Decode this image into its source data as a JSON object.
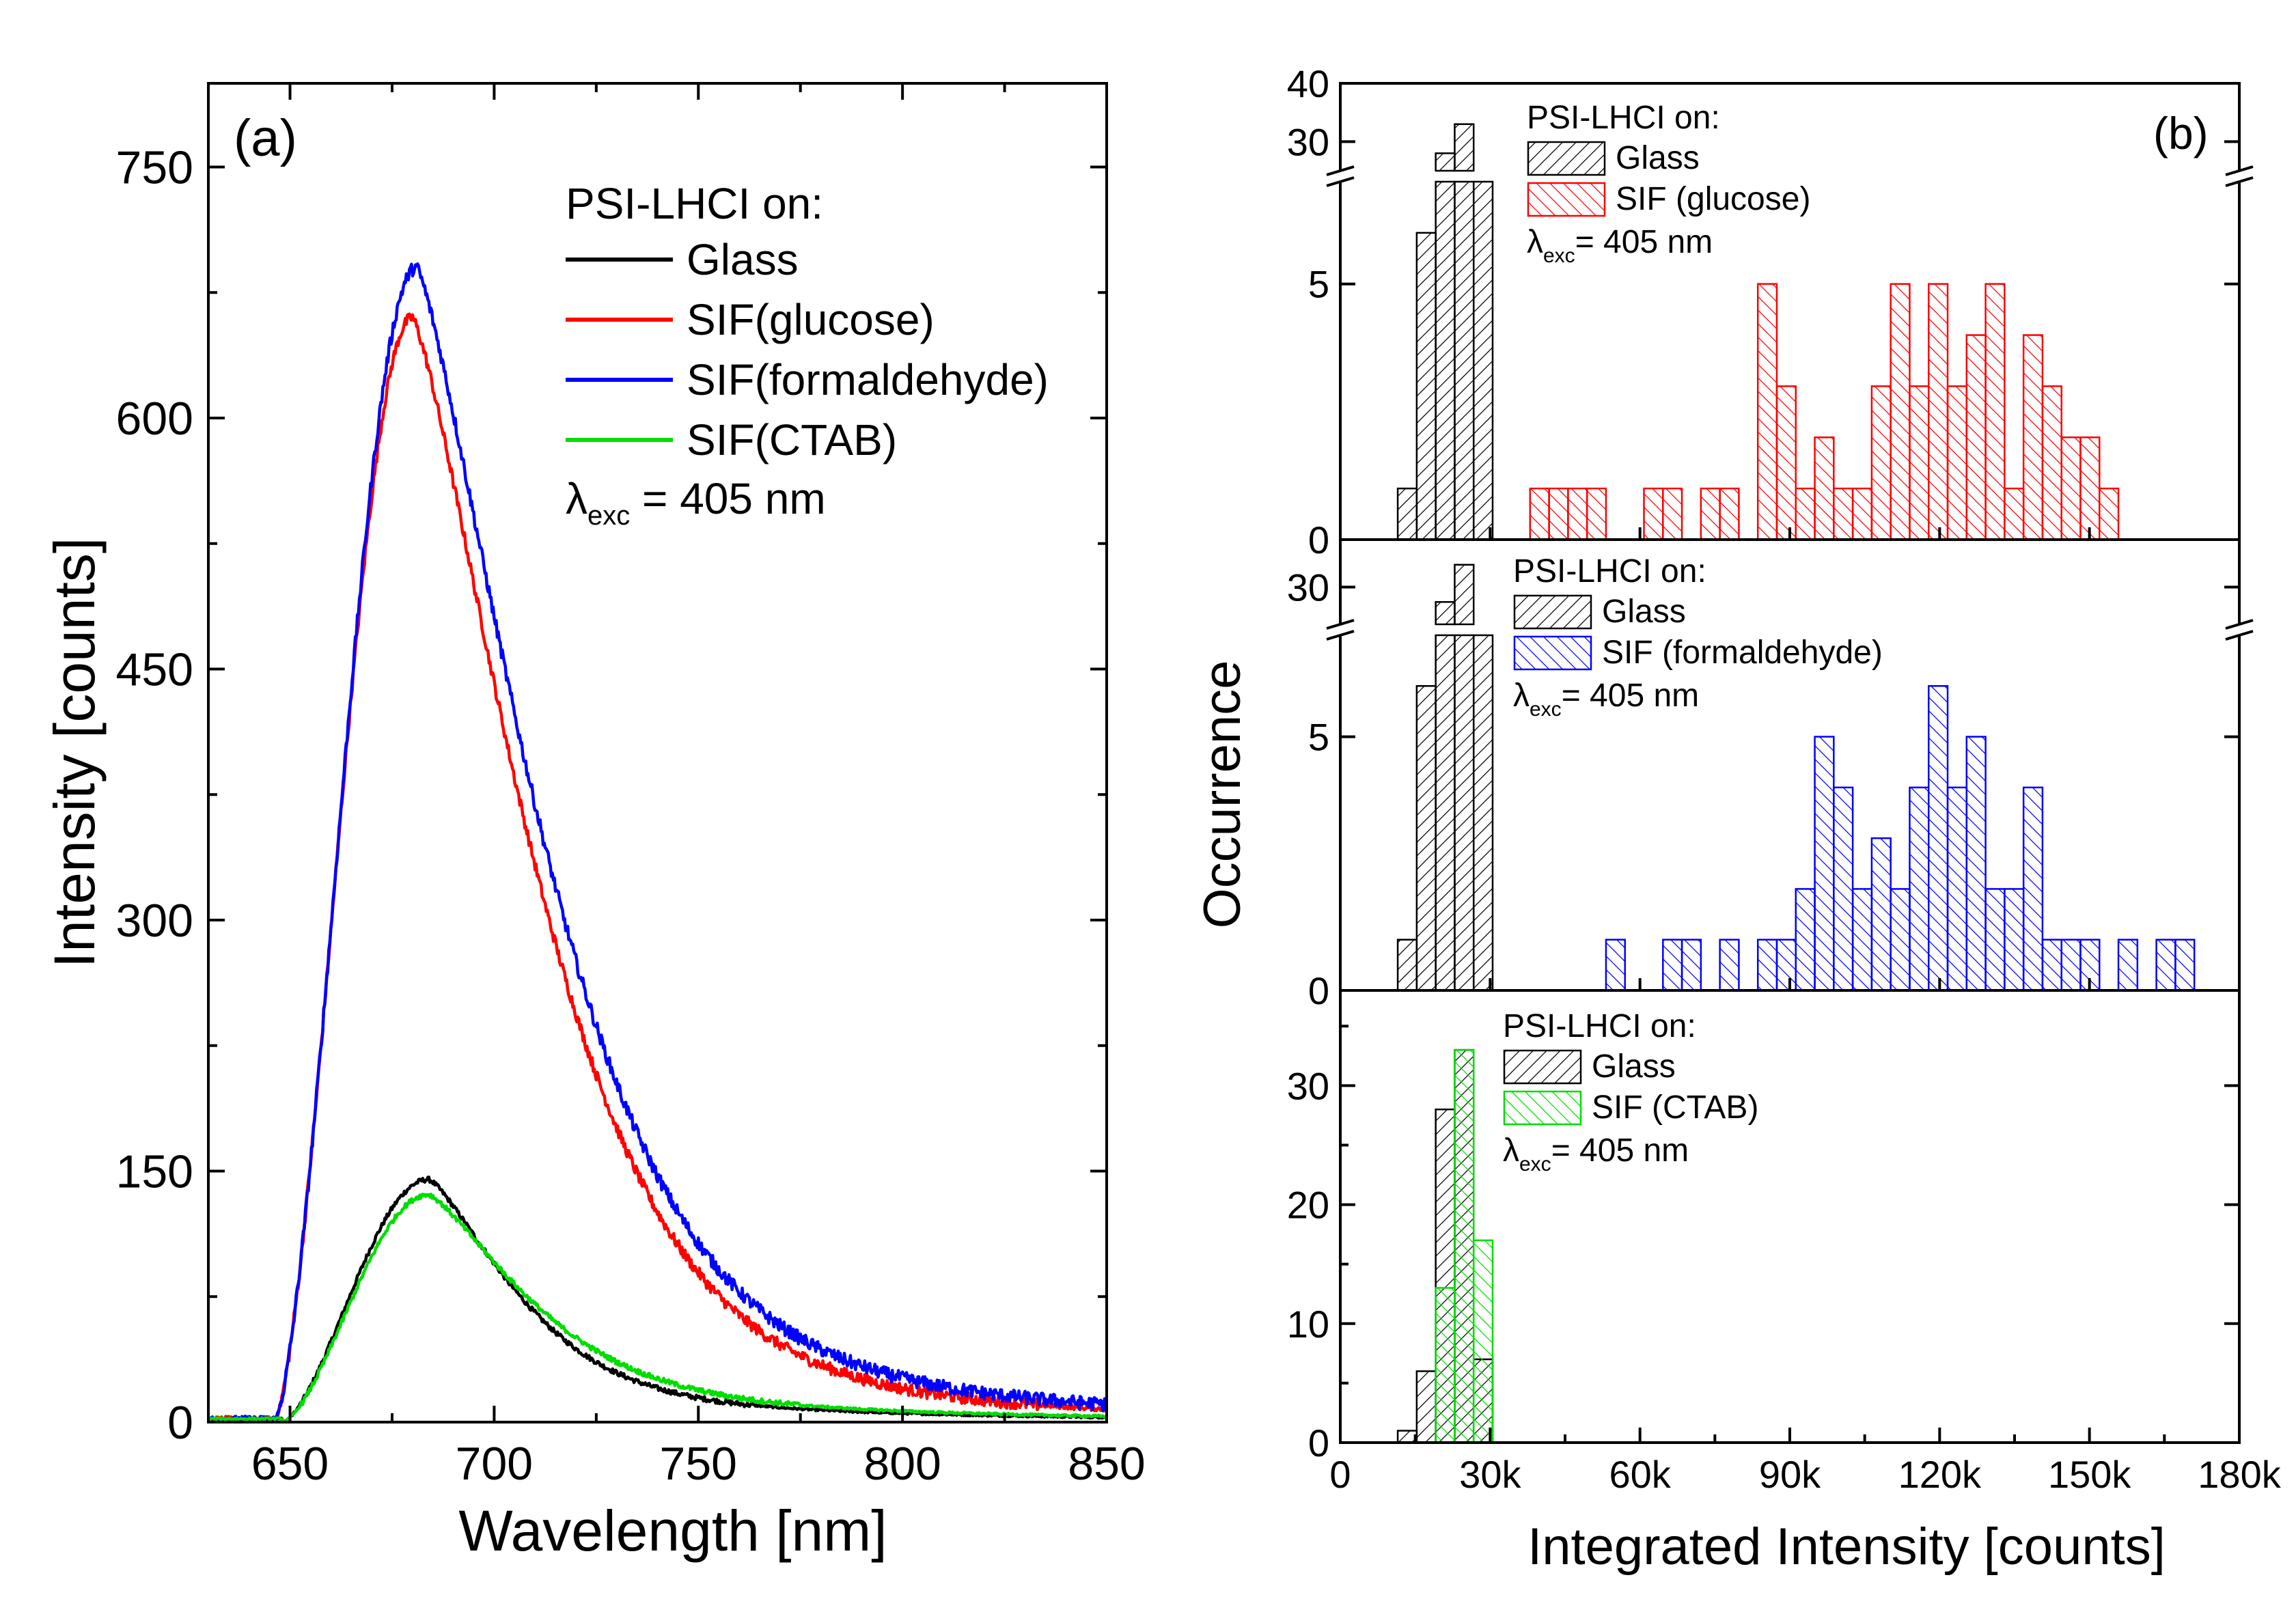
{
  "chart_data": [
    {
      "type": "line",
      "panel_label": "(a)",
      "xlabel": "Wavelength [nm]",
      "ylabel": "Intensity [counts]",
      "xlim": [
        630,
        850
      ],
      "ylim": [
        0,
        800
      ],
      "xticks": [
        650,
        700,
        750,
        800,
        850
      ],
      "xtick_labels": [
        "650",
        "700",
        "750",
        "800",
        "850"
      ],
      "yticks": [
        0,
        150,
        300,
        450,
        600,
        750
      ],
      "ytick_labels": [
        "0",
        "150",
        "300",
        "450",
        "600",
        "750"
      ],
      "legend_title": "PSI-LHCI on:",
      "annotation": {
        "lambda": "λ",
        "sub": "exc",
        "text": " = 405 nm"
      },
      "series": [
        {
          "name": "Glass",
          "color": "#000000",
          "peak": 145,
          "peak_x": 684,
          "onset": 648,
          "rise": 12,
          "decay": 28,
          "decay2": 85,
          "frac2": 0.14,
          "noise": 3
        },
        {
          "name": "SIF(glucose)",
          "color": "#ff0000",
          "peak": 660,
          "peak_x": 680,
          "onset": 646,
          "rise": 9,
          "decay": 38,
          "decay2": 72,
          "frac2": 0.12,
          "noise": 7
        },
        {
          "name": "SIF(formaldehyde)",
          "color": "#0000ff",
          "peak": 690,
          "peak_x": 681,
          "onset": 646,
          "rise": 9,
          "decay": 39,
          "decay2": 75,
          "frac2": 0.14,
          "noise": 8
        },
        {
          "name": "SIF(CTAB)",
          "color": "#00dd00",
          "peak": 136,
          "peak_x": 684,
          "onset": 648,
          "rise": 12,
          "decay": 32,
          "decay2": 85,
          "frac2": 0.18,
          "noise": 3
        }
      ]
    },
    {
      "type": "bar",
      "panel_label": "(b)",
      "xlabel": "Integrated Intensity [counts]",
      "ylabel": "Occurrence",
      "xlim": [
        0,
        180000
      ],
      "xticks": [
        0,
        30000,
        60000,
        90000,
        120000,
        150000,
        180000
      ],
      "xtick_labels": [
        "0",
        "30k",
        "60k",
        "90k",
        "120k",
        "150k",
        "180k"
      ],
      "bin_width": 3800,
      "panels": [
        {
          "id": "glucose",
          "lower_ylim": [
            0,
            7
          ],
          "lower_ticks": [
            0,
            5
          ],
          "upper_ylim": [
            25,
            40
          ],
          "upper_ticks": [
            30,
            40
          ],
          "legend_title": "PSI-LHCI on:",
          "legend_entries": [
            "Glass",
            "SIF (glucose)"
          ],
          "annotation": {
            "lambda": "λ",
            "sub": "exc",
            "text": "= 405 nm"
          },
          "series": [
            {
              "name": "Glass",
              "color": "#000000",
              "bins": [
                [
                  11500,
                  1
                ],
                [
                  15300,
                  6
                ],
                [
                  19100,
                  28
                ],
                [
                  22900,
                  33
                ],
                [
                  26700,
                  7
                ]
              ]
            },
            {
              "name": "SIF (glucose)",
              "color": "#ff0000",
              "bins": [
                [
                  38000,
                  1
                ],
                [
                  41800,
                  1
                ],
                [
                  45600,
                  1
                ],
                [
                  49400,
                  1
                ],
                [
                  60800,
                  1
                ],
                [
                  64600,
                  1
                ],
                [
                  72200,
                  1
                ],
                [
                  76000,
                  1
                ],
                [
                  83600,
                  5
                ],
                [
                  87400,
                  3
                ],
                [
                  91200,
                  1
                ],
                [
                  95000,
                  2
                ],
                [
                  98800,
                  1
                ],
                [
                  102600,
                  1
                ],
                [
                  106400,
                  3
                ],
                [
                  110200,
                  5
                ],
                [
                  114000,
                  3
                ],
                [
                  117800,
                  5
                ],
                [
                  121600,
                  3
                ],
                [
                  125400,
                  4
                ],
                [
                  129200,
                  5
                ],
                [
                  133000,
                  1
                ],
                [
                  136800,
                  4
                ],
                [
                  140600,
                  3
                ],
                [
                  144400,
                  2
                ],
                [
                  148200,
                  2
                ],
                [
                  152000,
                  1
                ]
              ]
            }
          ]
        },
        {
          "id": "formaldehyde",
          "lower_ylim": [
            0,
            7
          ],
          "lower_ticks": [
            0,
            5
          ],
          "upper_ylim": [
            25,
            35
          ],
          "upper_ticks": [
            30
          ],
          "legend_title": "PSI-LHCI on:",
          "legend_entries": [
            "Glass",
            "SIF (formaldehyde)"
          ],
          "annotation": {
            "lambda": "λ",
            "sub": "exc",
            "text": "= 405 nm"
          },
          "series": [
            {
              "name": "Glass",
              "color": "#000000",
              "bins": [
                [
                  11500,
                  1
                ],
                [
                  15300,
                  6
                ],
                [
                  19100,
                  28
                ],
                [
                  22900,
                  33
                ],
                [
                  26700,
                  7
                ]
              ]
            },
            {
              "name": "SIF (formaldehyde)",
              "color": "#0000ff",
              "bins": [
                [
                  53200,
                  1
                ],
                [
                  64600,
                  1
                ],
                [
                  68400,
                  1
                ],
                [
                  76000,
                  1
                ],
                [
                  83600,
                  1
                ],
                [
                  87400,
                  1
                ],
                [
                  91200,
                  2
                ],
                [
                  95000,
                  5
                ],
                [
                  98800,
                  4
                ],
                [
                  102600,
                  2
                ],
                [
                  106400,
                  3
                ],
                [
                  110200,
                  2
                ],
                [
                  114000,
                  4
                ],
                [
                  117800,
                  6
                ],
                [
                  121600,
                  4
                ],
                [
                  125400,
                  5
                ],
                [
                  129200,
                  2
                ],
                [
                  133000,
                  2
                ],
                [
                  136800,
                  4
                ],
                [
                  140600,
                  1
                ],
                [
                  144400,
                  1
                ],
                [
                  148200,
                  1
                ],
                [
                  155800,
                  1
                ],
                [
                  163400,
                  1
                ],
                [
                  167200,
                  1
                ]
              ]
            }
          ]
        },
        {
          "id": "ctab",
          "ylim": [
            0,
            38
          ],
          "yticks": [
            0,
            10,
            20,
            30
          ],
          "ytick_labels": [
            "0",
            "10",
            "20",
            "30"
          ],
          "legend_title": "PSI-LHCI on:",
          "legend_entries": [
            "Glass",
            "SIF (CTAB)"
          ],
          "annotation": {
            "lambda": "λ",
            "sub": "exc",
            "text": "= 405 nm"
          },
          "series": [
            {
              "name": "Glass",
              "color": "#000000",
              "bins": [
                [
                  11500,
                  1
                ],
                [
                  15300,
                  6
                ],
                [
                  19100,
                  28
                ],
                [
                  22900,
                  33
                ],
                [
                  26700,
                  7
                ]
              ]
            },
            {
              "name": "SIF (CTAB)",
              "color": "#00dd00",
              "bins": [
                [
                  19100,
                  13
                ],
                [
                  22900,
                  33
                ],
                [
                  26700,
                  17
                ]
              ]
            }
          ]
        }
      ]
    }
  ]
}
